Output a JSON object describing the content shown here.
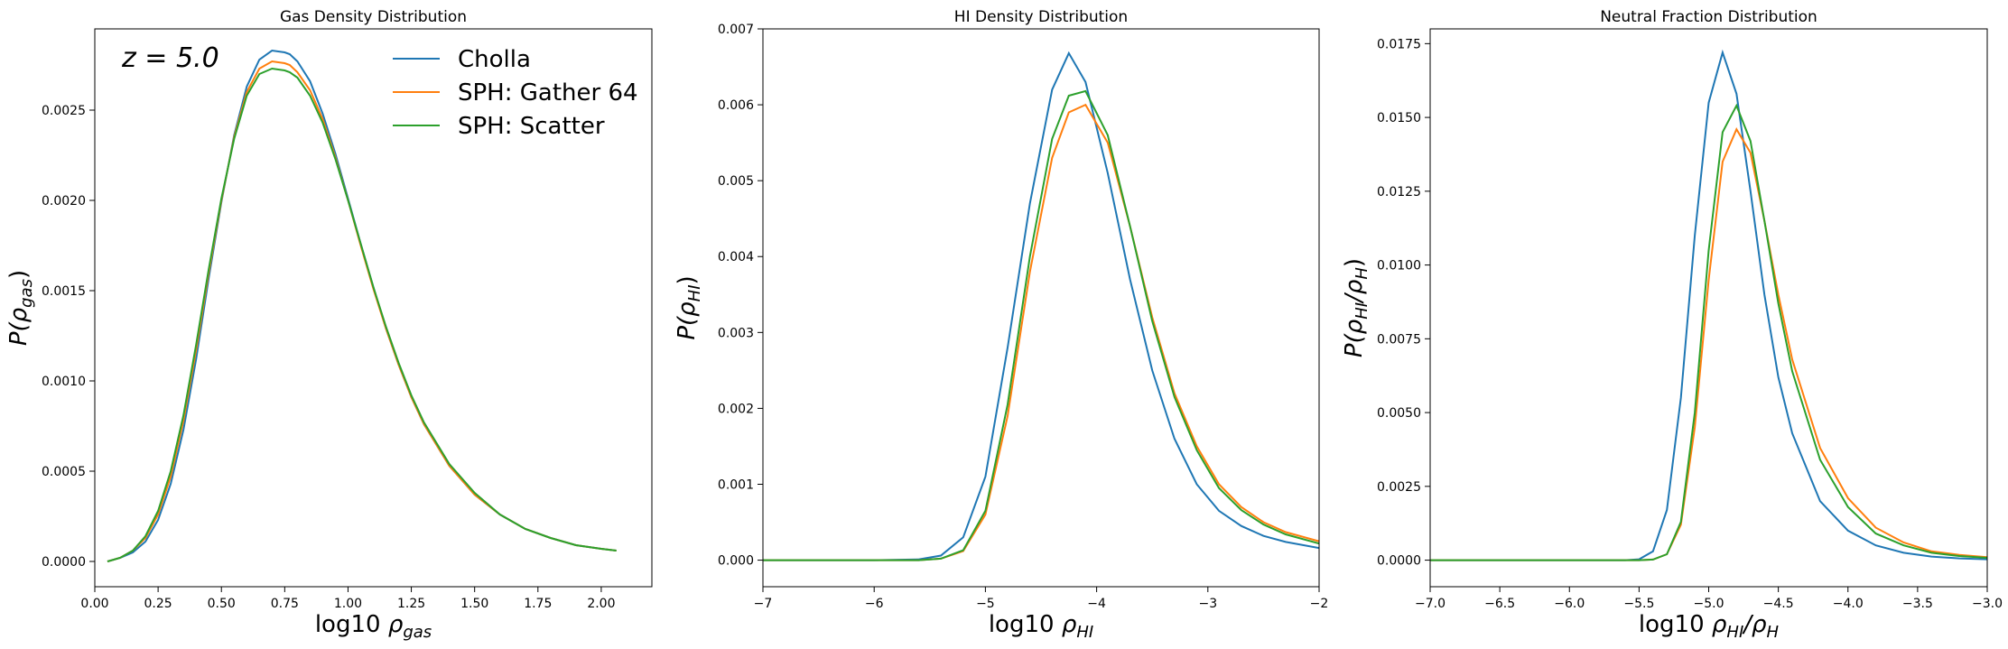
{
  "colors": {
    "cholla": "#1f77b4",
    "gather": "#ff7f0e",
    "scatter": "#2ca02c",
    "axes": "#000000"
  },
  "legend": {
    "placement": "upper-right",
    "entries": [
      "Cholla",
      "SPH: Gather 64",
      "SPH: Scatter"
    ]
  },
  "chart_data": [
    {
      "type": "line",
      "title": "Gas Density Distribution",
      "xlabel_prefix": "log10",
      "xlabel_sym": "ρ",
      "xlabel_sub": "gas",
      "ylabel_sym": "P(ρ",
      "ylabel_sub": "gas",
      "ylabel_end": ")",
      "annotation": "z = 5.0",
      "xlim": [
        0.0,
        2.2
      ],
      "ylim": [
        -0.00014,
        0.00295
      ],
      "xticks": [
        "0.00",
        "0.25",
        "0.50",
        "0.75",
        "1.00",
        "1.25",
        "1.50",
        "1.75",
        "2.00"
      ],
      "xtick_values": [
        0,
        0.25,
        0.5,
        0.75,
        1.0,
        1.25,
        1.5,
        1.75,
        2.0
      ],
      "yticks": [
        "0.0000",
        "0.0005",
        "0.0010",
        "0.0015",
        "0.0020",
        "0.0025"
      ],
      "ytick_values": [
        0,
        0.0005,
        0.001,
        0.0015,
        0.002,
        0.0025
      ],
      "series": [
        {
          "name": "Cholla",
          "x": [
            0.05,
            0.1,
            0.15,
            0.2,
            0.25,
            0.3,
            0.35,
            0.4,
            0.45,
            0.5,
            0.55,
            0.6,
            0.65,
            0.7,
            0.75,
            0.77,
            0.8,
            0.85,
            0.9,
            0.95,
            1.0,
            1.05,
            1.1,
            1.15,
            1.2,
            1.25,
            1.3,
            1.4,
            1.5,
            1.6,
            1.7,
            1.8,
            1.9,
            2.0,
            2.06
          ],
          "y": [
            0.0,
            2e-05,
            5e-05,
            0.00011,
            0.00023,
            0.00043,
            0.00073,
            0.00112,
            0.00157,
            0.00199,
            0.00236,
            0.00263,
            0.00278,
            0.00283,
            0.00282,
            0.00281,
            0.00277,
            0.00266,
            0.00248,
            0.00226,
            0.00201,
            0.00176,
            0.00152,
            0.00129,
            0.00109,
            0.00091,
            0.00076,
            0.00053,
            0.00037,
            0.00026,
            0.00018,
            0.00013,
            9e-05,
            7e-05,
            6e-05
          ]
        },
        {
          "name": "SPH: Gather 64",
          "x": [
            0.05,
            0.1,
            0.15,
            0.2,
            0.25,
            0.3,
            0.35,
            0.4,
            0.45,
            0.5,
            0.55,
            0.6,
            0.65,
            0.7,
            0.75,
            0.77,
            0.8,
            0.85,
            0.9,
            0.95,
            1.0,
            1.05,
            1.1,
            1.15,
            1.2,
            1.25,
            1.3,
            1.4,
            1.5,
            1.6,
            1.7,
            1.8,
            1.9,
            2.0,
            2.06
          ],
          "y": [
            0.0,
            2e-05,
            6e-05,
            0.00013,
            0.00026,
            0.00047,
            0.00078,
            0.00117,
            0.0016,
            0.002,
            0.00235,
            0.0026,
            0.00273,
            0.00277,
            0.00276,
            0.00275,
            0.00271,
            0.00261,
            0.00245,
            0.00224,
            0.002,
            0.00175,
            0.00151,
            0.00129,
            0.00109,
            0.00091,
            0.00076,
            0.00053,
            0.00037,
            0.00026,
            0.00018,
            0.00013,
            9e-05,
            7e-05,
            6e-05
          ]
        },
        {
          "name": "SPH: Scatter",
          "x": [
            0.05,
            0.1,
            0.15,
            0.2,
            0.25,
            0.3,
            0.35,
            0.4,
            0.45,
            0.5,
            0.55,
            0.6,
            0.65,
            0.7,
            0.75,
            0.77,
            0.8,
            0.85,
            0.9,
            0.95,
            1.0,
            1.05,
            1.1,
            1.15,
            1.2,
            1.25,
            1.3,
            1.4,
            1.5,
            1.6,
            1.7,
            1.8,
            1.9,
            2.0,
            2.06
          ],
          "y": [
            0.0,
            2e-05,
            6e-05,
            0.00014,
            0.00028,
            0.0005,
            0.00081,
            0.0012,
            0.00162,
            0.00201,
            0.00234,
            0.00258,
            0.0027,
            0.00273,
            0.00272,
            0.00271,
            0.00268,
            0.00258,
            0.00243,
            0.00223,
            0.002,
            0.00176,
            0.00152,
            0.0013,
            0.0011,
            0.00092,
            0.00077,
            0.00054,
            0.00038,
            0.00026,
            0.00018,
            0.00013,
            9e-05,
            7e-05,
            6e-05
          ]
        }
      ]
    },
    {
      "type": "line",
      "title": "HI Density Distribution",
      "xlabel_prefix": "log10",
      "xlabel_sym": "ρ",
      "xlabel_sub": "HI",
      "ylabel_sym": "P(ρ",
      "ylabel_sub": "HI",
      "ylabel_end": ")",
      "xlim": [
        -7,
        -2
      ],
      "ylim": [
        -0.00035,
        0.007
      ],
      "xticks": [
        "−7",
        "−6",
        "−5",
        "−4",
        "−3",
        "−2"
      ],
      "xtick_values": [
        -7,
        -6,
        -5,
        -4,
        -3,
        -2
      ],
      "yticks": [
        "0.000",
        "0.001",
        "0.002",
        "0.003",
        "0.004",
        "0.005",
        "0.006",
        "0.007"
      ],
      "ytick_values": [
        0,
        0.001,
        0.002,
        0.003,
        0.004,
        0.005,
        0.006,
        0.007
      ],
      "series": [
        {
          "name": "Cholla",
          "x": [
            -7.0,
            -6.0,
            -5.6,
            -5.4,
            -5.2,
            -5.0,
            -4.8,
            -4.6,
            -4.4,
            -4.25,
            -4.1,
            -3.9,
            -3.7,
            -3.5,
            -3.3,
            -3.1,
            -2.9,
            -2.7,
            -2.5,
            -2.3,
            -2.0
          ],
          "y": [
            0.0,
            0.0,
            1e-05,
            6e-05,
            0.0003,
            0.0011,
            0.0028,
            0.0047,
            0.0062,
            0.00668,
            0.0063,
            0.0051,
            0.0037,
            0.0025,
            0.0016,
            0.001,
            0.00065,
            0.00045,
            0.00032,
            0.00024,
            0.00016
          ]
        },
        {
          "name": "SPH: Gather 64",
          "x": [
            -7.0,
            -6.0,
            -5.6,
            -5.4,
            -5.2,
            -5.0,
            -4.8,
            -4.6,
            -4.4,
            -4.25,
            -4.1,
            -3.9,
            -3.7,
            -3.5,
            -3.3,
            -3.1,
            -2.9,
            -2.7,
            -2.5,
            -2.3,
            -2.0
          ],
          "y": [
            0.0,
            0.0,
            0.0,
            2e-05,
            0.00012,
            0.0006,
            0.0019,
            0.0038,
            0.0053,
            0.0059,
            0.006,
            0.0055,
            0.0044,
            0.0032,
            0.0022,
            0.0015,
            0.001,
            0.0007,
            0.0005,
            0.00037,
            0.00025
          ]
        },
        {
          "name": "SPH: Scatter",
          "x": [
            -7.0,
            -6.0,
            -5.6,
            -5.4,
            -5.2,
            -5.0,
            -4.8,
            -4.6,
            -4.4,
            -4.25,
            -4.1,
            -3.9,
            -3.7,
            -3.5,
            -3.3,
            -3.1,
            -2.9,
            -2.7,
            -2.5,
            -2.3,
            -2.0
          ],
          "y": [
            0.0,
            0.0,
            0.0,
            2e-05,
            0.00013,
            0.00065,
            0.00205,
            0.004,
            0.00555,
            0.00612,
            0.00618,
            0.0056,
            0.0044,
            0.00315,
            0.00215,
            0.00145,
            0.00095,
            0.00066,
            0.00047,
            0.00034,
            0.00022
          ]
        }
      ]
    },
    {
      "type": "line",
      "title": "Neutral Fraction Distribution",
      "xlabel_prefix": "log10",
      "xlabel_sym": "ρ",
      "xlabel_sub": "HI",
      "xlabel_sym2": "/ρ",
      "xlabel_sub2": "H",
      "ylabel_sym": "P(ρ",
      "ylabel_sub": "HI",
      "ylabel_mid": "/ρ",
      "ylabel_sub2": "H",
      "ylabel_end": ")",
      "xlim": [
        -7.0,
        -3.0
      ],
      "ylim": [
        -0.0009,
        0.018
      ],
      "xticks": [
        "−7.0",
        "−6.5",
        "−6.0",
        "−5.5",
        "−5.0",
        "−4.5",
        "−4.0",
        "−3.5",
        "−3.0"
      ],
      "xtick_values": [
        -7.0,
        -6.5,
        -6.0,
        -5.5,
        -5.0,
        -4.5,
        -4.0,
        -3.5,
        -3.0
      ],
      "yticks": [
        "0.0000",
        "0.0025",
        "0.0050",
        "0.0075",
        "0.0100",
        "0.0125",
        "0.0150",
        "0.0175"
      ],
      "ytick_values": [
        0,
        0.0025,
        0.005,
        0.0075,
        0.01,
        0.0125,
        0.015,
        0.0175
      ],
      "series": [
        {
          "name": "Cholla",
          "x": [
            -7.0,
            -6.0,
            -5.6,
            -5.5,
            -5.4,
            -5.3,
            -5.2,
            -5.1,
            -5.0,
            -4.9,
            -4.8,
            -4.7,
            -4.6,
            -4.5,
            -4.4,
            -4.2,
            -4.0,
            -3.8,
            -3.6,
            -3.4,
            -3.2,
            -3.0
          ],
          "y": [
            0.0,
            0.0,
            0.0,
            3e-05,
            0.0003,
            0.0017,
            0.0055,
            0.011,
            0.0155,
            0.0172,
            0.0158,
            0.0125,
            0.009,
            0.0062,
            0.0043,
            0.002,
            0.001,
            0.0005,
            0.00025,
            0.00012,
            6e-05,
            3e-05
          ]
        },
        {
          "name": "SPH: Gather 64",
          "x": [
            -7.0,
            -6.0,
            -5.6,
            -5.5,
            -5.4,
            -5.3,
            -5.2,
            -5.1,
            -5.0,
            -4.9,
            -4.8,
            -4.7,
            -4.6,
            -4.5,
            -4.4,
            -4.2,
            -4.0,
            -3.8,
            -3.6,
            -3.4,
            -3.2,
            -3.0
          ],
          "y": [
            0.0,
            0.0,
            0.0,
            0.0,
            2e-05,
            0.0002,
            0.0012,
            0.0045,
            0.0095,
            0.0135,
            0.0146,
            0.0138,
            0.0115,
            0.009,
            0.0068,
            0.0038,
            0.0021,
            0.0011,
            0.0006,
            0.0003,
            0.00018,
            0.0001
          ]
        },
        {
          "name": "SPH: Scatter",
          "x": [
            -7.0,
            -6.0,
            -5.6,
            -5.5,
            -5.4,
            -5.3,
            -5.2,
            -5.1,
            -5.0,
            -4.9,
            -4.8,
            -4.7,
            -4.6,
            -4.5,
            -4.4,
            -4.2,
            -4.0,
            -3.8,
            -3.6,
            -3.4,
            -3.2,
            -3.0
          ],
          "y": [
            0.0,
            0.0,
            0.0,
            0.0,
            2e-05,
            0.0002,
            0.0013,
            0.005,
            0.0105,
            0.0145,
            0.0154,
            0.0142,
            0.0115,
            0.0087,
            0.0064,
            0.0034,
            0.0018,
            0.0009,
            0.0005,
            0.00025,
            0.00014,
            8e-05
          ]
        }
      ]
    }
  ]
}
